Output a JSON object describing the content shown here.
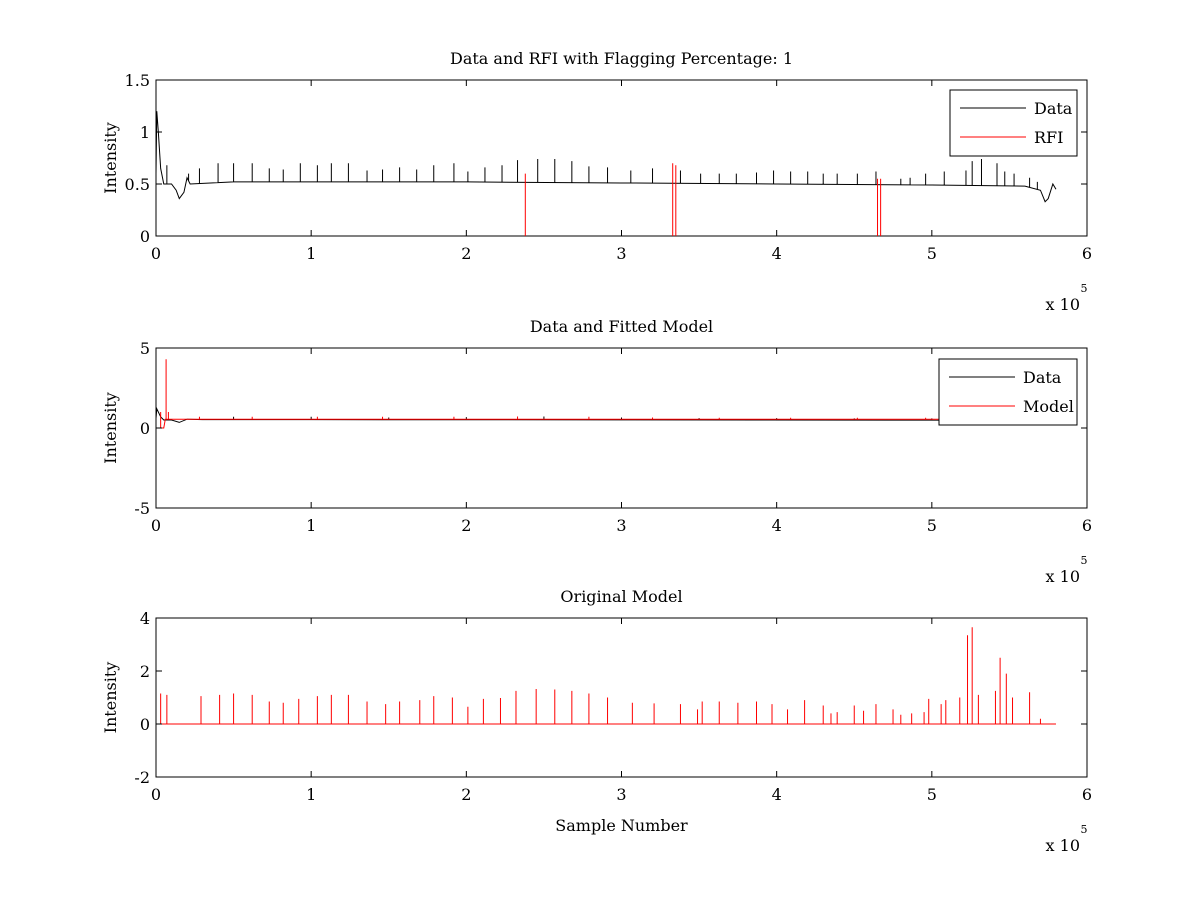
{
  "figure": {
    "background": "#ffffff"
  },
  "chart_data": [
    {
      "type": "line",
      "title": "Data and RFI with Flagging Percentage: 1",
      "xlabel": "",
      "ylabel": "Intensity",
      "xlim": [
        0,
        6
      ],
      "ylim": [
        0,
        1.5
      ],
      "x_ticks": [
        0,
        1,
        2,
        3,
        4,
        5,
        6
      ],
      "y_ticks": [
        0,
        0.5,
        1,
        1.5
      ],
      "x_multiplier": {
        "base": "x 10",
        "exponent": "5"
      },
      "grid": false,
      "legend": {
        "position": "top-right",
        "entries": [
          {
            "name": "Data",
            "color": "#000000"
          },
          {
            "name": "RFI",
            "color": "#ff0000"
          }
        ]
      },
      "x_end": 5.8,
      "series": [
        {
          "name": "Data",
          "color": "#000000",
          "baseline": [
            [
              0,
              0.6
            ],
            [
              0.005,
              1.2
            ],
            [
              0.015,
              1.0
            ],
            [
              0.03,
              0.65
            ],
            [
              0.05,
              0.5
            ],
            [
              0.1,
              0.5
            ],
            [
              0.13,
              0.44
            ],
            [
              0.15,
              0.36
            ],
            [
              0.18,
              0.42
            ],
            [
              0.2,
              0.56
            ],
            [
              0.22,
              0.5
            ],
            [
              0.5,
              0.52
            ],
            [
              1,
              0.52
            ],
            [
              2,
              0.52
            ],
            [
              3,
              0.51
            ],
            [
              4,
              0.5
            ],
            [
              5,
              0.49
            ],
            [
              5.6,
              0.48
            ],
            [
              5.7,
              0.44
            ],
            [
              5.73,
              0.33
            ],
            [
              5.75,
              0.36
            ],
            [
              5.78,
              0.5
            ],
            [
              5.8,
              0.45
            ]
          ],
          "spikes": [
            [
              0.07,
              0.68
            ],
            [
              0.21,
              0.6
            ],
            [
              0.28,
              0.65
            ],
            [
              0.4,
              0.7
            ],
            [
              0.5,
              0.7
            ],
            [
              0.62,
              0.7
            ],
            [
              0.73,
              0.65
            ],
            [
              0.82,
              0.64
            ],
            [
              0.93,
              0.7
            ],
            [
              1.04,
              0.68
            ],
            [
              1.13,
              0.7
            ],
            [
              1.24,
              0.7
            ],
            [
              1.36,
              0.63
            ],
            [
              1.46,
              0.64
            ],
            [
              1.57,
              0.66
            ],
            [
              1.68,
              0.64
            ],
            [
              1.79,
              0.68
            ],
            [
              1.92,
              0.7
            ],
            [
              2.01,
              0.62
            ],
            [
              2.12,
              0.66
            ],
            [
              2.23,
              0.68
            ],
            [
              2.33,
              0.73
            ],
            [
              2.46,
              0.74
            ],
            [
              2.57,
              0.74
            ],
            [
              2.68,
              0.72
            ],
            [
              2.79,
              0.67
            ],
            [
              2.91,
              0.66
            ],
            [
              3.06,
              0.63
            ],
            [
              3.2,
              0.65
            ],
            [
              3.38,
              0.63
            ],
            [
              3.51,
              0.6
            ],
            [
              3.63,
              0.6
            ],
            [
              3.74,
              0.6
            ],
            [
              3.87,
              0.61
            ],
            [
              3.98,
              0.63
            ],
            [
              4.09,
              0.62
            ],
            [
              4.2,
              0.62
            ],
            [
              4.3,
              0.6
            ],
            [
              4.39,
              0.6
            ],
            [
              4.52,
              0.6
            ],
            [
              4.64,
              0.62
            ],
            [
              4.8,
              0.55
            ],
            [
              4.86,
              0.56
            ],
            [
              4.96,
              0.6
            ],
            [
              5.08,
              0.62
            ],
            [
              5.22,
              0.63
            ],
            [
              5.26,
              0.72
            ],
            [
              5.32,
              0.74
            ],
            [
              5.42,
              0.7
            ],
            [
              5.47,
              0.62
            ],
            [
              5.53,
              0.6
            ],
            [
              5.63,
              0.56
            ],
            [
              5.68,
              0.52
            ]
          ]
        },
        {
          "name": "RFI",
          "color": "#ff0000",
          "spikes": [
            [
              2.38,
              0.6
            ],
            [
              3.33,
              0.7
            ],
            [
              3.35,
              0.68
            ],
            [
              4.65,
              0.55
            ],
            [
              4.67,
              0.55
            ]
          ]
        }
      ]
    },
    {
      "type": "line",
      "title": "Data and Fitted Model",
      "xlabel": "",
      "ylabel": "Intensity",
      "xlim": [
        0,
        6
      ],
      "ylim": [
        -5,
        5
      ],
      "x_ticks": [
        0,
        1,
        2,
        3,
        4,
        5,
        6
      ],
      "y_ticks": [
        -5,
        0,
        5
      ],
      "x_multiplier": {
        "base": "x 10",
        "exponent": "5"
      },
      "grid": false,
      "legend": {
        "position": "top-right",
        "entries": [
          {
            "name": "Data",
            "color": "#000000"
          },
          {
            "name": "Model",
            "color": "#ff0000"
          }
        ]
      },
      "x_end": 5.8,
      "series": [
        {
          "name": "Data",
          "color": "#000000",
          "baseline": [
            [
              0,
              0.6
            ],
            [
              0.005,
              1.2
            ],
            [
              0.03,
              0.7
            ],
            [
              0.05,
              0.5
            ],
            [
              0.1,
              0.5
            ],
            [
              0.15,
              0.35
            ],
            [
              0.2,
              0.55
            ],
            [
              0.3,
              0.52
            ],
            [
              1,
              0.52
            ],
            [
              3,
              0.51
            ],
            [
              5,
              0.49
            ],
            [
              5.8,
              0.46
            ]
          ],
          "spikes": [
            [
              0.5,
              0.7
            ],
            [
              1.0,
              0.7
            ],
            [
              1.5,
              0.66
            ],
            [
              2.0,
              0.68
            ],
            [
              2.5,
              0.72
            ],
            [
              3.0,
              0.66
            ],
            [
              3.5,
              0.62
            ],
            [
              4.0,
              0.62
            ],
            [
              4.5,
              0.6
            ],
            [
              5.0,
              0.6
            ]
          ]
        },
        {
          "name": "Model",
          "color": "#ff0000",
          "baseline": [
            [
              0,
              0.0
            ],
            [
              0.02,
              0.0
            ],
            [
              0.05,
              0.0
            ],
            [
              0.06,
              0.55
            ],
            [
              1,
              0.55
            ],
            [
              3,
              0.55
            ],
            [
              5.8,
              0.55
            ]
          ],
          "spikes": [
            [
              0.03,
              1.0
            ],
            [
              0.065,
              4.3
            ],
            [
              0.08,
              1.0
            ],
            [
              0.28,
              0.7
            ],
            [
              0.62,
              0.7
            ],
            [
              1.04,
              0.7
            ],
            [
              1.46,
              0.7
            ],
            [
              1.92,
              0.7
            ],
            [
              2.33,
              0.72
            ],
            [
              2.79,
              0.7
            ],
            [
              3.2,
              0.66
            ],
            [
              3.63,
              0.64
            ],
            [
              4.09,
              0.64
            ],
            [
              4.52,
              0.64
            ],
            [
              4.96,
              0.64
            ]
          ]
        }
      ]
    },
    {
      "type": "line",
      "title": "Original Model",
      "xlabel": "Sample Number",
      "ylabel": "Intensity",
      "xlim": [
        0,
        6
      ],
      "ylim": [
        -2,
        4
      ],
      "x_ticks": [
        0,
        1,
        2,
        3,
        4,
        5,
        6
      ],
      "y_ticks": [
        -2,
        0,
        2,
        4
      ],
      "x_multiplier": {
        "base": "x 10",
        "exponent": "5"
      },
      "grid": false,
      "legend": null,
      "x_end": 5.8,
      "series": [
        {
          "name": "",
          "color": "#ff0000",
          "baseline": [
            [
              0.02,
              0.0
            ],
            [
              5.8,
              0.0
            ]
          ],
          "spikes": [
            [
              0.03,
              1.15
            ],
            [
              0.07,
              1.1
            ],
            [
              0.29,
              1.05
            ],
            [
              0.41,
              1.1
            ],
            [
              0.5,
              1.15
            ],
            [
              0.62,
              1.1
            ],
            [
              0.73,
              0.85
            ],
            [
              0.82,
              0.8
            ],
            [
              0.92,
              0.95
            ],
            [
              1.04,
              1.05
            ],
            [
              1.13,
              1.1
            ],
            [
              1.24,
              1.1
            ],
            [
              1.36,
              0.85
            ],
            [
              1.48,
              0.75
            ],
            [
              1.57,
              0.85
            ],
            [
              1.7,
              0.9
            ],
            [
              1.79,
              1.05
            ],
            [
              1.91,
              1.0
            ],
            [
              2.01,
              0.65
            ],
            [
              2.11,
              0.95
            ],
            [
              2.22,
              0.98
            ],
            [
              2.32,
              1.25
            ],
            [
              2.45,
              1.32
            ],
            [
              2.57,
              1.3
            ],
            [
              2.68,
              1.25
            ],
            [
              2.79,
              1.15
            ],
            [
              2.91,
              1.0
            ],
            [
              3.07,
              0.8
            ],
            [
              3.21,
              0.78
            ],
            [
              3.38,
              0.75
            ],
            [
              3.49,
              0.55
            ],
            [
              3.52,
              0.85
            ],
            [
              3.63,
              0.85
            ],
            [
              3.75,
              0.8
            ],
            [
              3.87,
              0.85
            ],
            [
              3.97,
              0.75
            ],
            [
              4.07,
              0.55
            ],
            [
              4.18,
              0.9
            ],
            [
              4.3,
              0.7
            ],
            [
              4.35,
              0.4
            ],
            [
              4.39,
              0.45
            ],
            [
              4.5,
              0.7
            ],
            [
              4.56,
              0.5
            ],
            [
              4.64,
              0.75
            ],
            [
              4.75,
              0.55
            ],
            [
              4.8,
              0.35
            ],
            [
              4.87,
              0.4
            ],
            [
              4.95,
              0.45
            ],
            [
              4.98,
              0.95
            ],
            [
              5.06,
              0.75
            ],
            [
              5.09,
              0.9
            ],
            [
              5.18,
              1.0
            ],
            [
              5.23,
              3.35
            ],
            [
              5.26,
              3.65
            ],
            [
              5.3,
              1.1
            ],
            [
              5.41,
              1.25
            ],
            [
              5.44,
              2.5
            ],
            [
              5.48,
              1.9
            ],
            [
              5.52,
              1.0
            ],
            [
              5.63,
              1.2
            ],
            [
              5.7,
              0.2
            ]
          ]
        }
      ]
    }
  ]
}
